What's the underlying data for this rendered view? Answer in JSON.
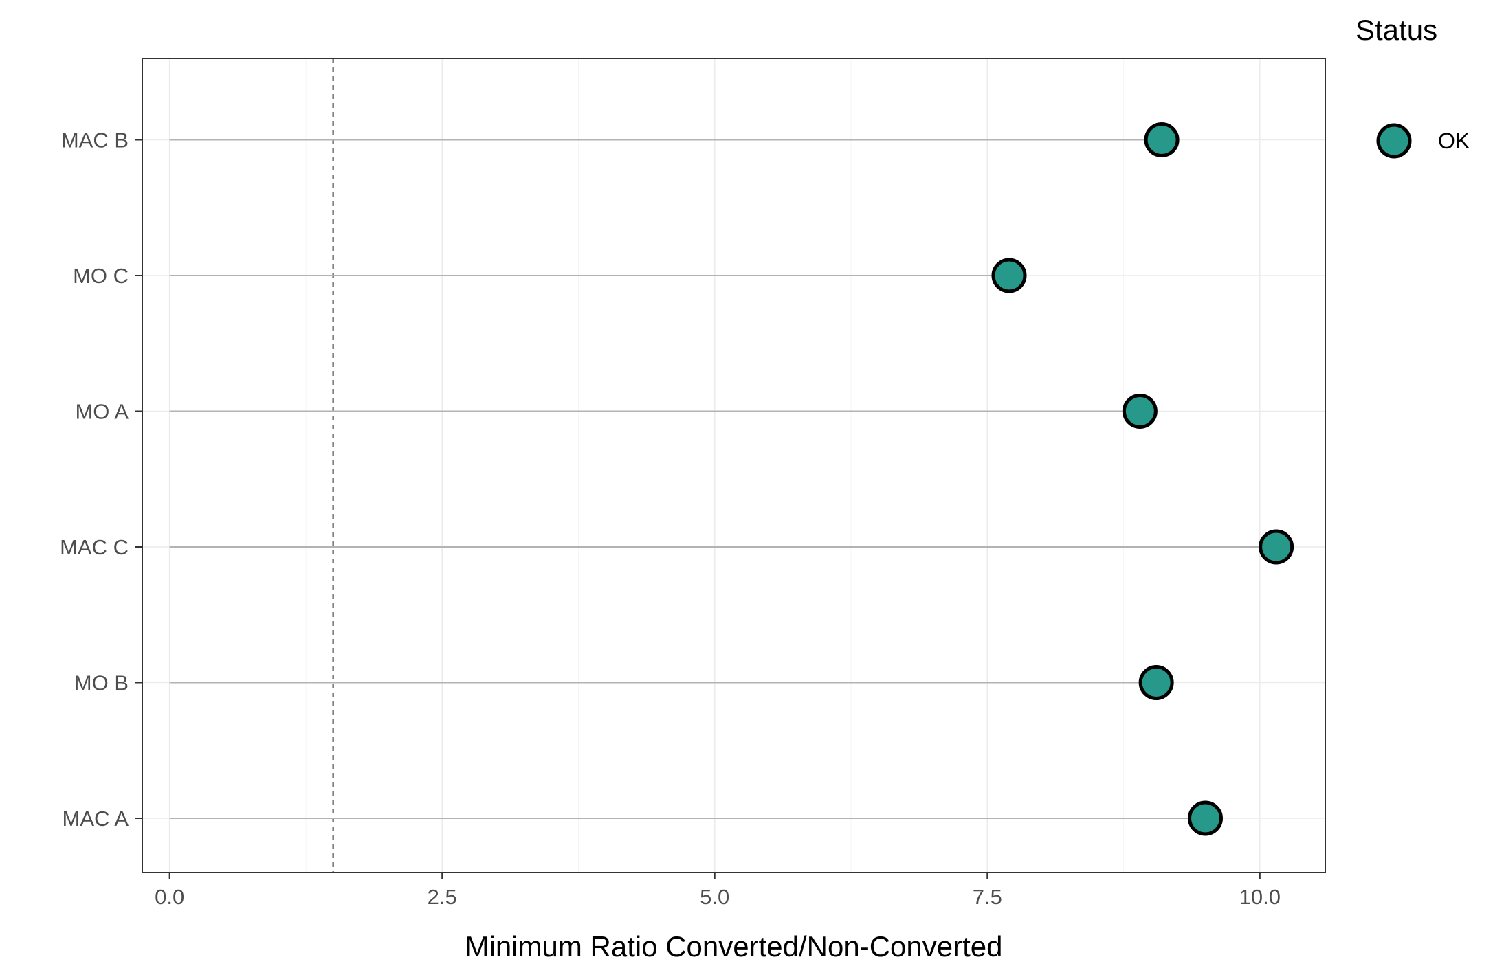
{
  "chart_data": {
    "type": "scatter",
    "subtype": "lollipop",
    "orientation": "horizontal",
    "categories": [
      "MAC B",
      "MO C",
      "MO A",
      "MAC C",
      "MO B",
      "MAC A"
    ],
    "series": [
      {
        "name": "OK",
        "values": [
          9.1,
          7.7,
          8.9,
          10.15,
          9.05,
          9.5
        ]
      }
    ],
    "xlabel": "Minimum Ratio Converted/Non-Converted",
    "ylabel": "",
    "xlim": [
      -0.25,
      10.6
    ],
    "xticks": [
      0.0,
      2.5,
      5.0,
      7.5,
      10.0
    ],
    "xtick_labels": [
      "0.0",
      "2.5",
      "5.0",
      "7.5",
      "10.0"
    ],
    "reference_line": {
      "x": 1.5,
      "style": "dashed"
    },
    "grid": true,
    "legend": {
      "title": "Status",
      "placement": "right",
      "entries": [
        "OK"
      ]
    },
    "colors": {
      "point_fill": "#26998a",
      "point_stroke": "#000000",
      "stem": "#b3b3b3",
      "panel_border": "#333333",
      "grid": "#ebebeb"
    }
  }
}
